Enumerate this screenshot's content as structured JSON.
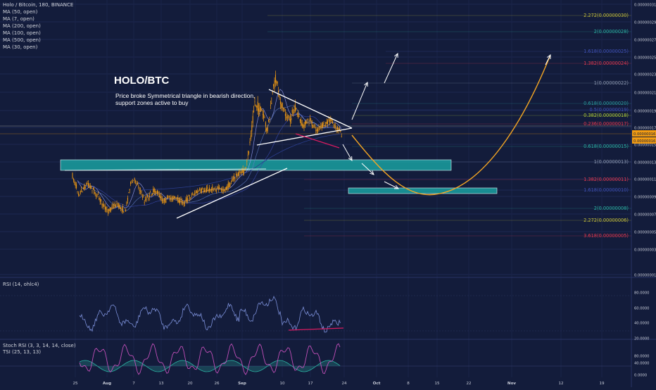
{
  "header": {
    "symbol_line": "Holo / Bitcoin, 180, BINANCE",
    "indicators": [
      "MA (50, open)",
      "MA (7, open)",
      "MA (200, open)",
      "MA (100, open)",
      "MA (500, open)",
      "MA (30, open)"
    ]
  },
  "annotation": {
    "title": "HOLO/BTC",
    "note_line1": "Price broke Symmetrical triangle in bearish direction,",
    "note_line2": "support zones active to buy"
  },
  "panels": {
    "rsi_label": "RSI (14, ohlc4)",
    "stoch_label": "Stoch RSI (3, 3, 14, 14, close)",
    "tsi_label": "TSI (25, 13, 13)"
  },
  "colors": {
    "background": "#131c3b",
    "candles": "#f39c12",
    "support_zone": "#1aa5a5",
    "projection": "#f5a623",
    "rsi_line": "#7b8fd8",
    "stoch_line": "#c04fb8",
    "tsi_line": "#2bb3a3",
    "divergence": "#d81b60"
  },
  "chart_data": [
    {
      "type": "line",
      "title": "Holo / Bitcoin, 180, BINANCE",
      "x_tick_labels": [
        "25",
        "Aug",
        "7",
        "13",
        "20",
        "26",
        "Sep",
        "10",
        "17",
        "24",
        "Oct",
        "8",
        "15",
        "22",
        "Nov",
        "12",
        "19"
      ],
      "y_tick_labels": [
        "0.00000031",
        "0.00000029",
        "0.00000027",
        "0.00000025",
        "0.00000023",
        "0.00000021",
        "0.00000019",
        "0.00000017",
        "0.00000015",
        "0.00000013",
        "0.00000011",
        "0.00000009",
        "0.00000007",
        "0.00000005",
        "0.00000003",
        "0.00000001"
      ],
      "price_tags": [
        "0.00000016",
        "0.00000016"
      ],
      "fib_levels": [
        {
          "label": "2.272(0.00000030)",
          "color": "#c6c13a"
        },
        {
          "label": "2(0.00000028)",
          "color": "#2bb3a3"
        },
        {
          "label": "1.618(0.00000025)",
          "color": "#3f51b5"
        },
        {
          "label": "1.382(0.00000024)",
          "color": "#e53950"
        },
        {
          "label": "1(0.00000022)",
          "color": "#8f9bb3"
        },
        {
          "label": "0.618(0.00000020)",
          "color": "#2b9fa0"
        },
        {
          "label": "0.5(0.00000019)",
          "color": "#3f51b5"
        },
        {
          "label": "0.382(0.00000018)",
          "color": "#b5d335"
        },
        {
          "label": "0.236(0.00000017)",
          "color": "#e53950"
        },
        {
          "label": "0.618(0.00000015)",
          "color": "#2bb3a3"
        },
        {
          "label": "1(0.00000013)",
          "color": "#8f9bb3"
        },
        {
          "label": "1.382(0.00000011)",
          "color": "#e53950"
        },
        {
          "label": "1.618(0.00000010)",
          "color": "#3f51b5"
        },
        {
          "label": "2(0.00000008)",
          "color": "#2bb3a3"
        },
        {
          "label": "2.272(0.00000006)",
          "color": "#c6c13a"
        },
        {
          "label": "3.618(0.00000005)",
          "color": "#e53950"
        }
      ]
    },
    {
      "type": "line",
      "title": "RSI (14, ohlc4)",
      "y_tick_labels": [
        "80.0000",
        "60.0000",
        "40.0000",
        "20.0000"
      ]
    },
    {
      "type": "line",
      "title": "Stoch RSI (3, 3, 14, 14, close)",
      "y_tick_labels": [
        "80.0000",
        "40.0000",
        "0.0000"
      ]
    }
  ]
}
